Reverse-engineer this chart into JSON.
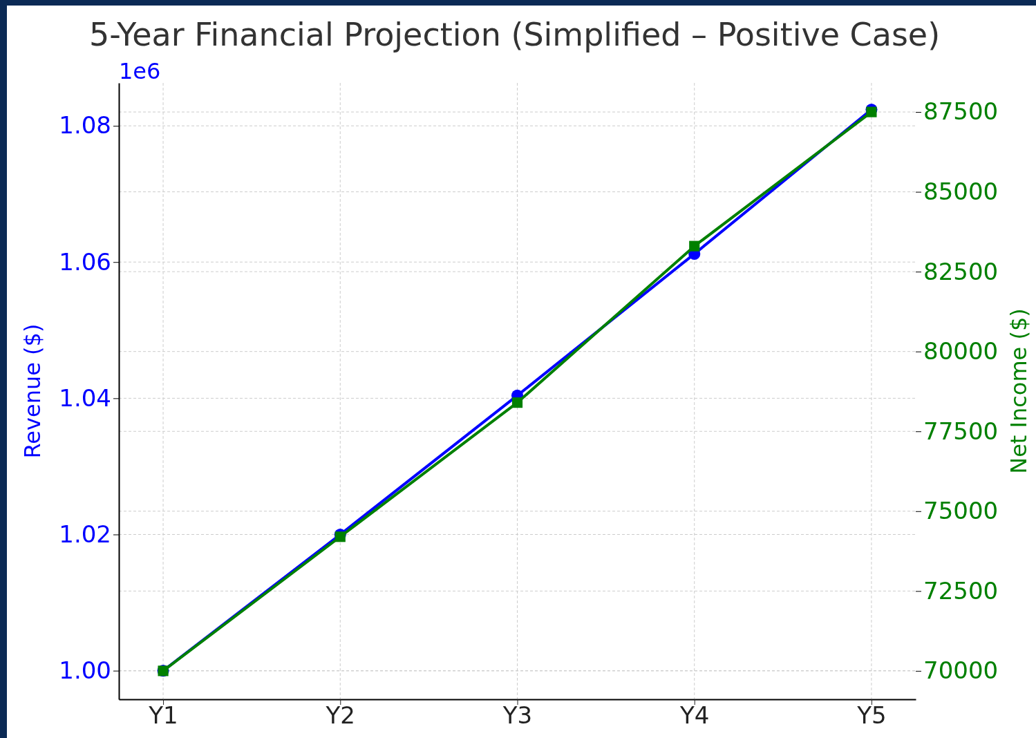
{
  "chart_data": {
    "type": "line",
    "title": "5-Year Financial Projection (Simplified – Positive Case)",
    "ylabel": "Revenue ($)",
    "y2label": "Net Income ($)",
    "categories": [
      "Y1",
      "Y2",
      "Y3",
      "Y4",
      "Y5"
    ],
    "series": [
      {
        "color": "#0000ff",
        "values": [
          1.0,
          1.02,
          1.0404,
          1.0612,
          1.0824
        ],
        "marker": "circle"
      },
      {
        "color": "#008000",
        "values": [
          70000,
          74200,
          78400,
          83300,
          87500
        ],
        "axis": "y2",
        "marker": "square"
      }
    ],
    "ylim": [
      0.9958,
      1.0863
    ],
    "yticks": [
      {
        "value": 1.0,
        "label": "1.00"
      },
      1.02,
      1.04,
      1.06,
      1.08
    ],
    "y2lim": [
      69110,
      88410
    ],
    "y2ticks": [
      70000,
      72500,
      75000,
      77500,
      80000,
      82500,
      85000,
      87500
    ],
    "annotations": [
      "1e6"
    ],
    "grid": true,
    "line_style": "solid"
  }
}
